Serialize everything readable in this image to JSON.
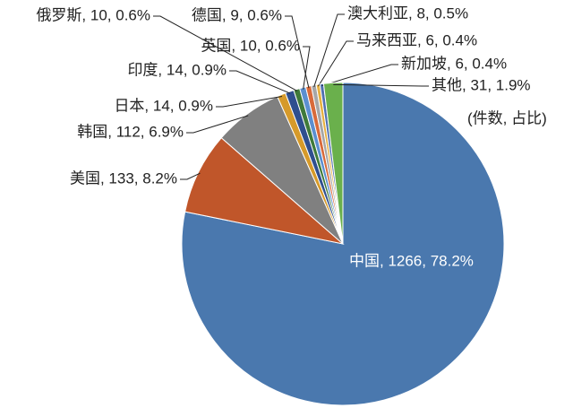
{
  "chart_data": {
    "type": "pie",
    "subtitle": "(件数, 占比)",
    "values": [
      1266,
      133,
      112,
      14,
      14,
      10,
      10,
      9,
      8,
      6,
      6,
      31
    ],
    "value_labels": [
      "中国, 1266, 78.2%",
      "美国, 133, 8.2%",
      "韩国, 112, 6.9%",
      "日本, 14, 0.9%",
      "印度, 14, 0.9%",
      "俄罗斯, 10, 0.6%",
      "英国, 10, 0.6%",
      "德国, 9, 0.6%",
      "澳大利亚, 8, 0.5%",
      "马来西亚, 6, 0.4%",
      "新加坡, 6, 0.4%",
      "其他, 31, 1.9%"
    ],
    "colors": [
      "#4a78ae",
      "#c0562a",
      "#808080",
      "#d69a2a",
      "#2f4f8f",
      "#3f7a3a",
      "#5b8fd0",
      "#d86a3a",
      "#a6a6a6",
      "#e6b040",
      "#5070b0",
      "#6ab04c"
    ]
  }
}
